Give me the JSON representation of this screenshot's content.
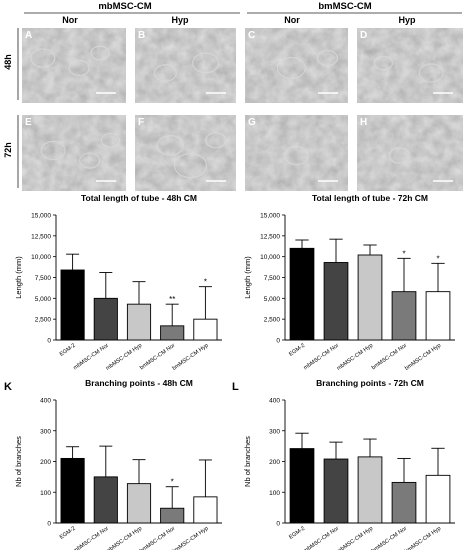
{
  "groups": [
    {
      "label": "mbMSC-CM",
      "cols": [
        "Nor",
        "Hyp"
      ]
    },
    {
      "label": "bmMSC-CM",
      "cols": [
        "Nor",
        "Hyp"
      ]
    }
  ],
  "rows": [
    "48h",
    "72h"
  ],
  "panel_letters": [
    [
      "A",
      "B",
      "C",
      "D"
    ],
    [
      "E",
      "F",
      "G",
      "H"
    ]
  ],
  "colors": {
    "bar_fills": [
      "#000000",
      "#444444",
      "#c8c8c8",
      "#7a7a7a",
      "#ffffff"
    ],
    "micrograph_base": "#9a9a9a",
    "scale_bar": "#ffffff"
  },
  "chart_data": [
    {
      "type": "bar",
      "title": "Total length of tube - 48h CM",
      "ylabel": "Length (mm)",
      "ylim": [
        0,
        15000
      ],
      "yticks": [
        "0",
        "2,500",
        "5,000",
        "7,500",
        "10,000",
        "12,500",
        "15,000"
      ],
      "categories": [
        "EGM-2",
        "mbMSC-CM Nor",
        "mbMSC-CM Hyp",
        "bmMSC-CM Nor",
        "bmMSC-CM Hyp"
      ],
      "values": [
        8400,
        5000,
        4300,
        1700,
        2500
      ],
      "errors": [
        1900,
        3100,
        2700,
        2600,
        3900
      ],
      "significance": [
        "",
        "",
        "",
        "**",
        "*"
      ]
    },
    {
      "type": "bar",
      "title": "Total length of tube - 72h CM",
      "ylabel": "Length (mm)",
      "ylim": [
        0,
        15000
      ],
      "yticks": [
        "0",
        "2,500",
        "5,000",
        "7,500",
        "10,000",
        "12,500",
        "15,000"
      ],
      "categories": [
        "EGM-2",
        "mbMSC-CM Nor",
        "mbMSC-CM Hyp",
        "bmMSC-CM Nor",
        "bmMSC-CM Hyp"
      ],
      "values": [
        11000,
        9300,
        10200,
        5800,
        5800
      ],
      "errors": [
        1000,
        2800,
        1200,
        4000,
        3400
      ],
      "significance": [
        "",
        "",
        "",
        "*",
        "*"
      ]
    },
    {
      "type": "bar",
      "panel_letter": "K",
      "title": "Branching points - 48h CM",
      "ylabel": "Nb of branches",
      "ylim": [
        0,
        400
      ],
      "yticks": [
        "0",
        "100",
        "200",
        "300",
        "400"
      ],
      "categories": [
        "EGM-2",
        "mbMSC-CM Nor",
        "mbMSC-CM Hyp",
        "bmMSC-CM Nor",
        "bmMSC-CM Hyp"
      ],
      "values": [
        210,
        150,
        128,
        48,
        85
      ],
      "errors": [
        38,
        100,
        78,
        70,
        120
      ],
      "significance": [
        "",
        "",
        "",
        "*",
        ""
      ]
    },
    {
      "type": "bar",
      "panel_letter": "L",
      "title": "Branching points - 72h CM",
      "ylabel": "Nb of branches",
      "ylim": [
        0,
        400
      ],
      "yticks": [
        "0",
        "100",
        "200",
        "300",
        "400"
      ],
      "categories": [
        "EGM-2",
        "mbMSC-CM Nor",
        "mbMSC-CM Hyp",
        "bmMSC-CM Nor",
        "bmMSC-CM Hyp"
      ],
      "values": [
        242,
        208,
        215,
        132,
        155
      ],
      "errors": [
        50,
        55,
        58,
        78,
        88
      ],
      "significance": [
        "",
        "",
        "",
        "",
        ""
      ]
    }
  ]
}
